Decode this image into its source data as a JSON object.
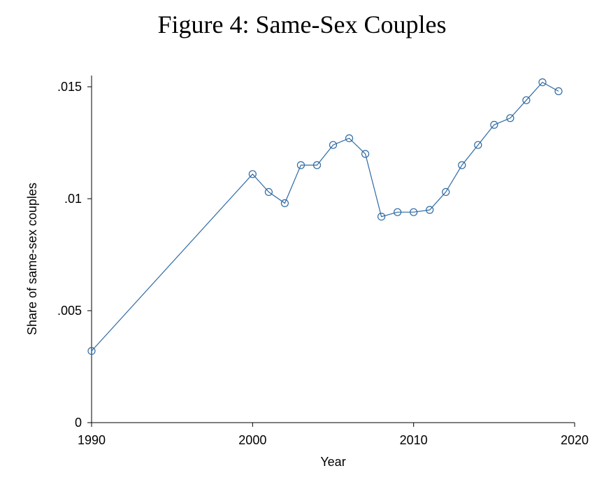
{
  "chart_data": {
    "type": "line",
    "title": "Figure 4: Same-Sex Couples",
    "xlabel": "Year",
    "ylabel": "Share of same-sex couples",
    "xlim": [
      1990,
      2020
    ],
    "ylim": [
      0,
      0.0155
    ],
    "x_ticks": [
      1990,
      2000,
      2010,
      2020
    ],
    "x_tick_labels": [
      "1990",
      "2000",
      "2010",
      "2020"
    ],
    "y_ticks": [
      0,
      0.005,
      0.01,
      0.015
    ],
    "y_tick_labels": [
      "0",
      ".005",
      ".01",
      ".015"
    ],
    "grid": false,
    "legend": "none",
    "line_color": "#2f6aa3",
    "marker": "hollow-circle",
    "series": [
      {
        "x": [
          1990,
          2000,
          2001,
          2002,
          2003,
          2004,
          2005,
          2006,
          2007,
          2008,
          2009,
          2010,
          2011,
          2012,
          2013,
          2014,
          2015,
          2016,
          2017,
          2018,
          2019
        ],
        "values": [
          0.0032,
          0.0111,
          0.0103,
          0.0098,
          0.0115,
          0.0115,
          0.0124,
          0.0127,
          0.012,
          0.0092,
          0.0094,
          0.0094,
          0.0095,
          0.0103,
          0.0115,
          0.0124,
          0.0133,
          0.0136,
          0.0144,
          0.0152,
          0.0148
        ]
      }
    ]
  }
}
